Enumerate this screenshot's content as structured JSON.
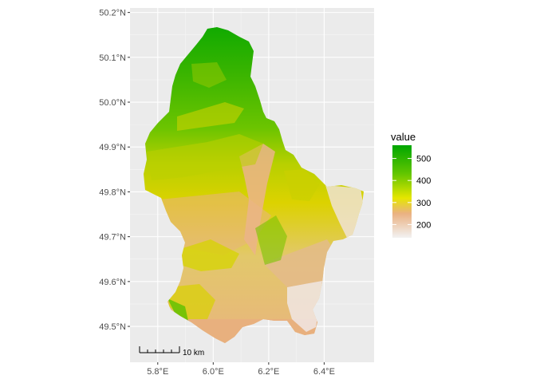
{
  "chart_data": {
    "type": "heatmap",
    "kind": "raster elevation map",
    "region_shape": "Luxembourg",
    "x_axis": {
      "range": [
        5.7,
        6.58
      ],
      "ticks": [
        {
          "value": 5.8,
          "label": "5.8°E"
        },
        {
          "value": 6.0,
          "label": "6.0°E"
        },
        {
          "value": 6.2,
          "label": "6.2°E"
        },
        {
          "value": 6.4,
          "label": "6.4°E"
        }
      ]
    },
    "y_axis": {
      "range": [
        49.42,
        50.21
      ],
      "ticks": [
        {
          "value": 49.5,
          "label": "49.5°N"
        },
        {
          "value": 49.6,
          "label": "49.6°N"
        },
        {
          "value": 49.7,
          "label": "49.7°N"
        },
        {
          "value": 49.8,
          "label": "49.8°N"
        },
        {
          "value": 49.9,
          "label": "49.9°N"
        },
        {
          "value": 50.0,
          "label": "50.0°N"
        },
        {
          "value": 50.1,
          "label": "50.1°N"
        },
        {
          "value": 50.2,
          "label": "50.2°N"
        }
      ]
    },
    "grid": true,
    "panel_background": "#ebebeb",
    "legend": {
      "title": "value",
      "position": "right",
      "range": [
        140,
        560
      ],
      "breaks": [
        200,
        300,
        400,
        500
      ],
      "labels": [
        "200",
        "300",
        "400",
        "500"
      ],
      "colors": [
        {
          "value": 140,
          "color": "#f2f2f2"
        },
        {
          "value": 250,
          "color": "#eab182"
        },
        {
          "value": 320,
          "color": "#e6e600"
        },
        {
          "value": 430,
          "color": "#63c600"
        },
        {
          "value": 560,
          "color": "#00a600"
        }
      ]
    },
    "scale_bar": {
      "label": "10 km",
      "position": "bottom-left",
      "divisions": 5
    }
  }
}
